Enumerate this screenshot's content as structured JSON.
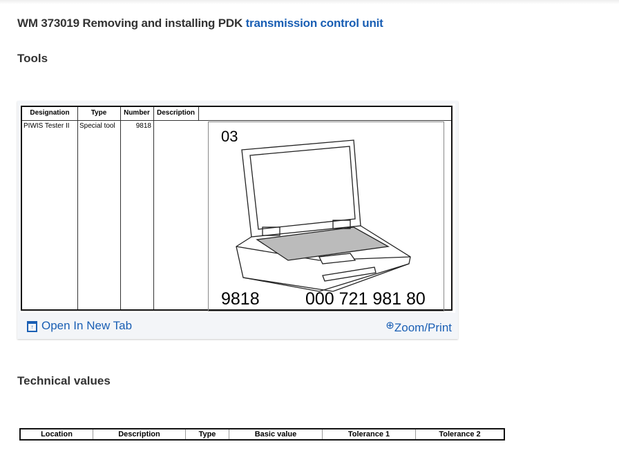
{
  "title": {
    "prefix": "WM 373019 Removing and installing PDK",
    "link": "transmission control unit"
  },
  "tools": {
    "heading": "Tools",
    "table": {
      "headers": [
        "Designation",
        "Type",
        "Number",
        "Description"
      ],
      "row": {
        "designation": "PIWIS Tester II",
        "type": "Special tool",
        "number": "9818",
        "description": ""
      }
    },
    "figure": {
      "label": "03",
      "number": "9818",
      "part_number": "000 721 981 80"
    },
    "open_new_tab": "Open In New Tab",
    "zoom_print": "Zoom/Print",
    "link_color": "#1a5fb4"
  },
  "technical_values": {
    "heading": "Technical values",
    "headers": [
      "Location",
      "Description",
      "Type",
      "Basic value",
      "Tolerance 1",
      "Tolerance 2"
    ]
  }
}
